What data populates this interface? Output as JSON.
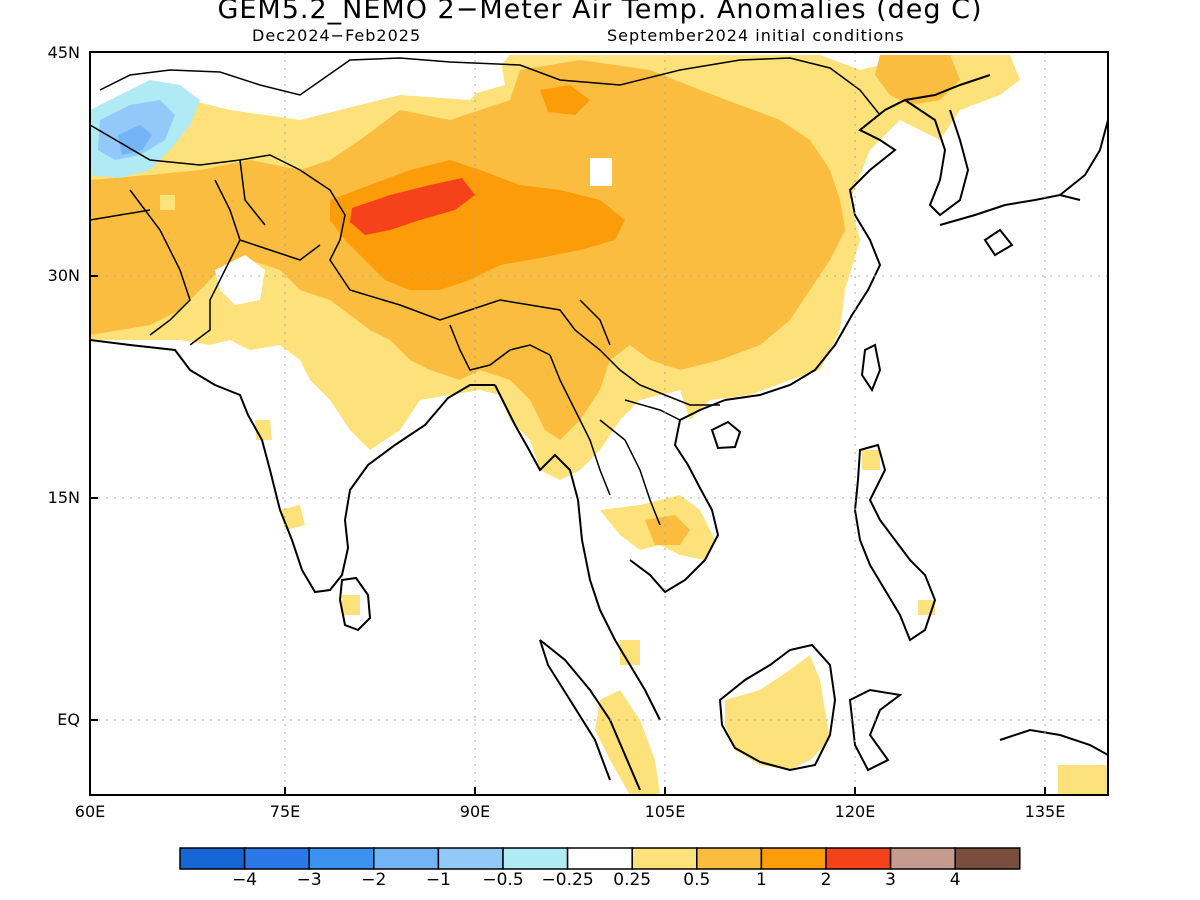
{
  "title": "GEM5.2_NEMO 2−Meter Air Temp. Anomalies (deg C)",
  "subtitle_left": "Dec2024−Feb2025",
  "subtitle_right": "September2024 initial conditions",
  "lon_labels": [
    "60E",
    "75E",
    "90E",
    "105E",
    "120E",
    "135E"
  ],
  "lat_labels": [
    "45N",
    "30N",
    "15N",
    "EQ"
  ],
  "colorbar": {
    "colors": [
      "#1565d4",
      "#2a78e8",
      "#3c92f0",
      "#72b4f5",
      "#92c9f8",
      "#b0eaf5",
      "#ffffff",
      "#fde17a",
      "#fbbd3f",
      "#fb9c08",
      "#f6421a",
      "#c69b8f",
      "#7a4e3e"
    ],
    "labels": [
      "−4",
      "−3",
      "−2",
      "−1",
      "−0.5",
      "−0.25",
      "0.25",
      "0.5",
      "1",
      "2",
      "3",
      "4"
    ]
  },
  "map_extent": {
    "lon": [
      60,
      140
    ],
    "lat": [
      -5,
      45
    ]
  }
}
